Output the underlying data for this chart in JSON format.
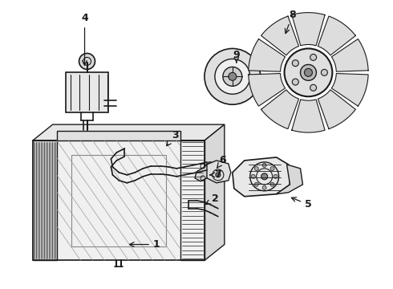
{
  "background_color": "#ffffff",
  "line_color": "#1a1a1a",
  "fig_width": 4.9,
  "fig_height": 3.6,
  "dpi": 100,
  "labels": {
    "1": [
      0.385,
      0.295,
      0.315,
      0.295
    ],
    "2": [
      0.535,
      0.435,
      0.475,
      0.455
    ],
    "3": [
      0.445,
      0.615,
      0.41,
      0.565
    ],
    "4": [
      0.21,
      0.895,
      0.21,
      0.845
    ],
    "5": [
      0.79,
      0.41,
      0.775,
      0.455
    ],
    "6": [
      0.555,
      0.525,
      0.535,
      0.505
    ],
    "7": [
      0.565,
      0.475,
      0.515,
      0.465
    ],
    "8": [
      0.735,
      0.905,
      0.695,
      0.875
    ],
    "9": [
      0.6,
      0.695,
      0.63,
      0.665
    ]
  }
}
